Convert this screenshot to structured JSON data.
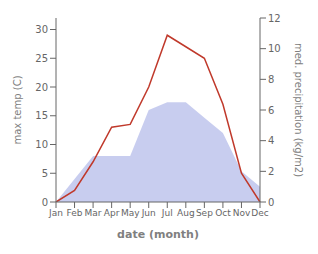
{
  "chart_data": {
    "type": "line",
    "categories": [
      "Jan",
      "Feb",
      "Mar",
      "Apr",
      "May",
      "Jun",
      "Jul",
      "Aug",
      "Sep",
      "Oct",
      "Nov",
      "Dec"
    ],
    "series": [
      {
        "type": "area",
        "axis": "y2",
        "color": "#b0b8e8",
        "values": [
          0.0,
          1.5,
          3.0,
          3.0,
          3.0,
          6.0,
          6.5,
          6.5,
          5.5,
          4.5,
          2.0,
          1.0
        ]
      },
      {
        "type": "line",
        "color": "#c0392b",
        "values": [
          0.0,
          2.0,
          7.0,
          13.0,
          13.5,
          20.0,
          29.0,
          27.0,
          25.0,
          17.0,
          5.0,
          0.0
        ]
      }
    ],
    "xlabel": "date (month)",
    "ylabel": "max temp (C)",
    "y2label": "med. precipitation (kg/m2)",
    "ylim": [
      0,
      32
    ],
    "yticks": [
      0,
      5,
      10,
      15,
      20,
      25,
      30
    ],
    "y2lim": [
      0,
      12
    ],
    "y2ticks": [
      0,
      2,
      4,
      6,
      8,
      10,
      12
    ],
    "grid": false
  }
}
